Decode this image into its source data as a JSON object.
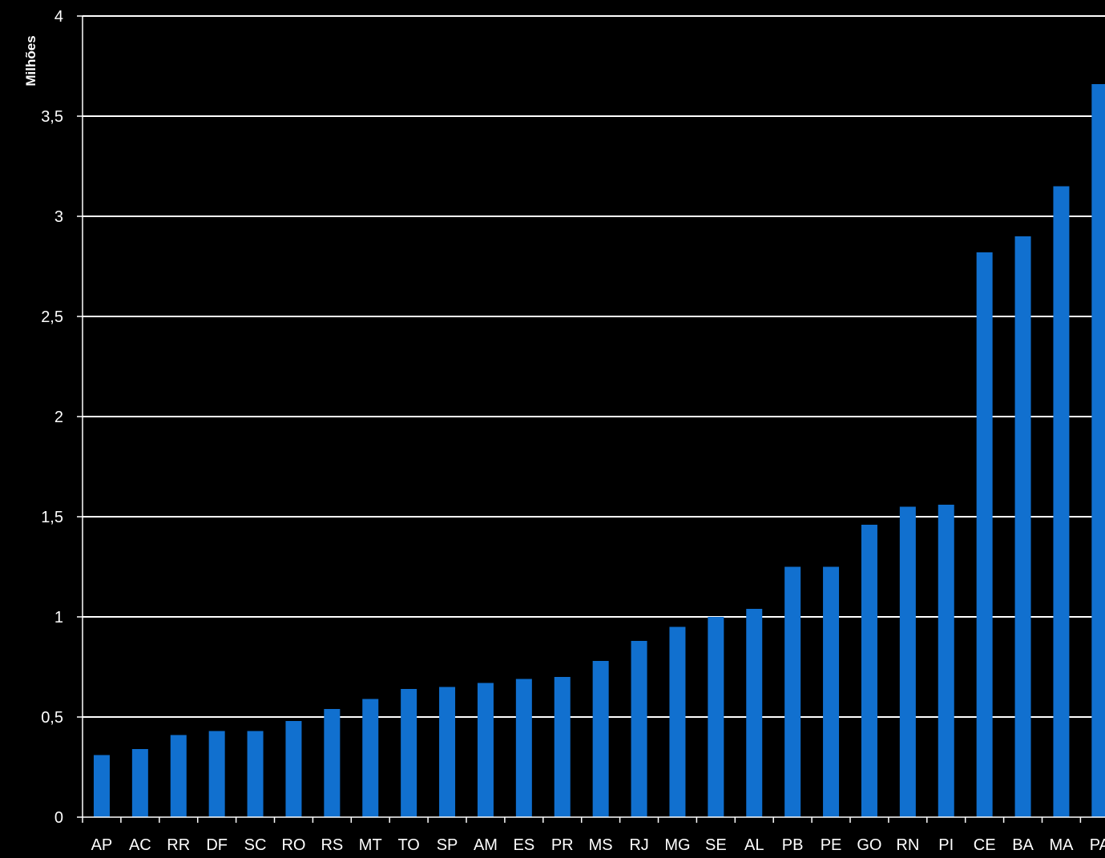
{
  "colors": {
    "background": "#000000",
    "bar": "#1170CF",
    "grid": "#FFFFFF",
    "text": "#FFFFFF"
  },
  "chart_data": {
    "type": "bar",
    "title": "",
    "xlabel": "",
    "ylabel": "Milhões",
    "ylim": [
      0,
      4
    ],
    "yticks": [
      0,
      0.5,
      1,
      1.5,
      2,
      2.5,
      3,
      3.5,
      4
    ],
    "ytick_labels": [
      "0",
      "0,5",
      "1",
      "1,5",
      "2",
      "2,5",
      "3",
      "3,5",
      "4"
    ],
    "grid": true,
    "legend": "none",
    "categories": [
      "AP",
      "AC",
      "RR",
      "DF",
      "SC",
      "RO",
      "RS",
      "MT",
      "TO",
      "SP",
      "AM",
      "ES",
      "PR",
      "MS",
      "RJ",
      "MG",
      "SE",
      "AL",
      "PB",
      "PE",
      "GO",
      "RN",
      "PI",
      "CE",
      "BA",
      "MA",
      "PA"
    ],
    "values": [
      0.31,
      0.34,
      0.41,
      0.43,
      0.43,
      0.48,
      0.54,
      0.59,
      0.64,
      0.65,
      0.67,
      0.69,
      0.7,
      0.78,
      0.88,
      0.95,
      1.0,
      1.04,
      1.25,
      1.25,
      1.46,
      1.55,
      1.56,
      2.82,
      2.9,
      3.15,
      3.66
    ]
  }
}
